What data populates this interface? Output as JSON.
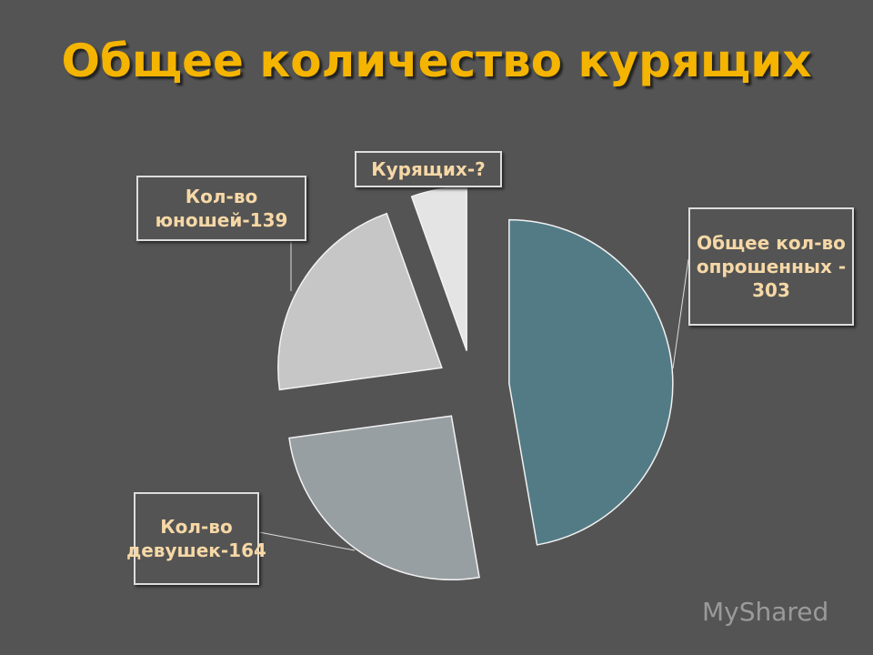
{
  "chart_data": {
    "type": "pie",
    "title": "Общее количество курящих",
    "categories": [
      "Общее кол-во опрошенных - 303",
      "Кол-во девушек-164",
      "Кол-во юношей-139",
      "Курящих-?"
    ],
    "values": [
      303,
      164,
      139,
      35
    ],
    "colors": [
      "#537b86",
      "#989fa3",
      "#c6c6c6",
      "#e4e4e4"
    ],
    "watermark": "MyShared"
  }
}
